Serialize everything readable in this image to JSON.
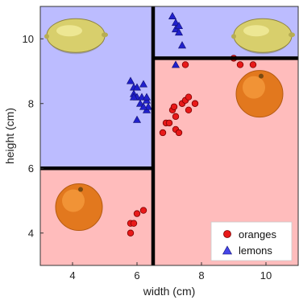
{
  "chart_data": {
    "type": "scatter",
    "title": "",
    "xlabel": "width (cm)",
    "ylabel": "height (cm)",
    "xlim": [
      3,
      11
    ],
    "ylim": [
      3,
      11
    ],
    "xticks": [
      4,
      6,
      8,
      10
    ],
    "yticks": [
      4,
      6,
      8,
      10
    ],
    "grid": false,
    "legend_position": "bottom-right",
    "regions": [
      {
        "x": [
          3,
          6.5
        ],
        "y": [
          6,
          11
        ],
        "class": "lemons",
        "color": "#bcbcff"
      },
      {
        "x": [
          6.5,
          11
        ],
        "y": [
          9.4,
          11
        ],
        "class": "lemons",
        "color": "#bcbcff"
      },
      {
        "x": [
          3,
          6.5
        ],
        "y": [
          3,
          6
        ],
        "class": "oranges",
        "color": "#ffbcbc"
      },
      {
        "x": [
          6.5,
          11
        ],
        "y": [
          3,
          9.4
        ],
        "class": "oranges",
        "color": "#ffbcbc"
      }
    ],
    "splits": [
      {
        "orientation": "vertical",
        "x": 6.5,
        "y": [
          3,
          11
        ]
      },
      {
        "orientation": "horizontal",
        "y": 6.0,
        "x": [
          3,
          6.5
        ]
      },
      {
        "orientation": "horizontal",
        "y": 9.4,
        "x": [
          6.5,
          11
        ]
      }
    ],
    "fruit_images": [
      {
        "kind": "lemon",
        "x": 4.1,
        "y": 10.1
      },
      {
        "kind": "lemon",
        "x": 9.9,
        "y": 10.1
      },
      {
        "kind": "orange",
        "x": 4.2,
        "y": 4.8
      },
      {
        "kind": "orange",
        "x": 9.8,
        "y": 8.3
      }
    ],
    "series": [
      {
        "name": "oranges",
        "marker": "circle",
        "color": "#e81919",
        "points": [
          [
            5.8,
            4.0
          ],
          [
            5.8,
            4.3
          ],
          [
            5.9,
            4.3
          ],
          [
            6.0,
            4.6
          ],
          [
            6.2,
            4.7
          ],
          [
            6.8,
            7.1
          ],
          [
            6.9,
            7.4
          ],
          [
            7.0,
            7.4
          ],
          [
            7.1,
            7.8
          ],
          [
            7.15,
            7.9
          ],
          [
            7.2,
            7.6
          ],
          [
            7.2,
            7.2
          ],
          [
            7.3,
            7.1
          ],
          [
            7.4,
            8.0
          ],
          [
            7.5,
            8.1
          ],
          [
            7.6,
            8.2
          ],
          [
            7.6,
            7.8
          ],
          [
            7.8,
            8.0
          ],
          [
            7.5,
            9.2
          ],
          [
            9.0,
            9.4
          ],
          [
            9.2,
            9.2
          ],
          [
            9.6,
            9.2
          ]
        ]
      },
      {
        "name": "lemons",
        "marker": "triangle",
        "color": "#2020cc",
        "points": [
          [
            5.8,
            8.7
          ],
          [
            5.9,
            8.5
          ],
          [
            5.9,
            8.3
          ],
          [
            6.0,
            8.2
          ],
          [
            6.0,
            8.5
          ],
          [
            6.1,
            8.0
          ],
          [
            6.15,
            8.2
          ],
          [
            6.2,
            8.6
          ],
          [
            6.3,
            8.1
          ],
          [
            6.3,
            8.2
          ],
          [
            6.3,
            7.8
          ],
          [
            6.35,
            7.9
          ],
          [
            6.0,
            7.5
          ],
          [
            6.2,
            7.9
          ],
          [
            5.9,
            8.2
          ],
          [
            7.1,
            10.7
          ],
          [
            7.2,
            10.5
          ],
          [
            7.2,
            10.3
          ],
          [
            7.3,
            10.2
          ],
          [
            7.3,
            10.4
          ],
          [
            7.4,
            9.8
          ],
          [
            7.2,
            9.2
          ]
        ]
      }
    ]
  }
}
